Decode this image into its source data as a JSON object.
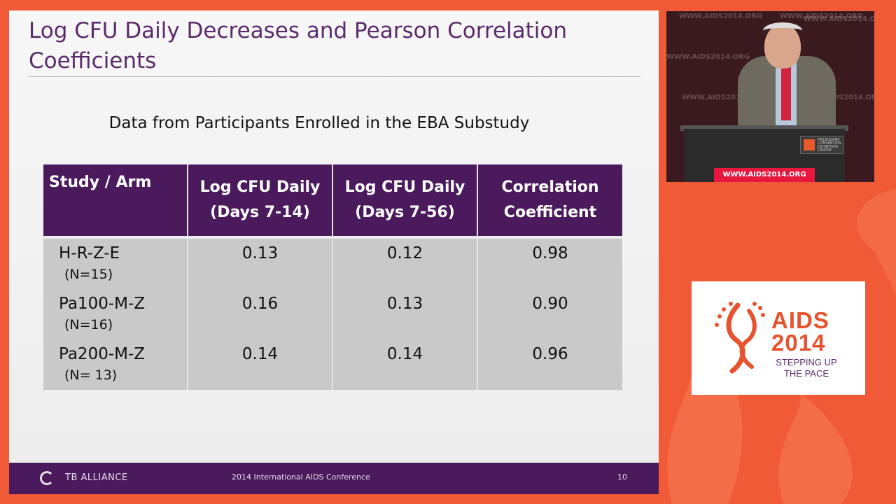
{
  "slide": {
    "title": "Log CFU Daily Decreases and Pearson Correlation Coefficients",
    "subtitle": "Data from Participants Enrolled in the EBA Substudy",
    "table": {
      "headers": [
        "Study / Arm",
        "Log CFU Daily (Days 7-14)",
        "Log CFU Daily (Days 7-56)",
        "Correlation Coefficient"
      ],
      "header_lines": [
        [
          "Study / Arm"
        ],
        [
          "Log CFU Daily",
          "(Days 7-14)"
        ],
        [
          "Log CFU Daily",
          "(Days 7-56)"
        ],
        [
          "Correlation",
          "Coefficient"
        ]
      ],
      "rows": [
        {
          "arm": "H-R-Z-E",
          "n": "(N=15)",
          "days_7_14": "0.13",
          "days_7_56": "0.12",
          "correlation": "0.98"
        },
        {
          "arm": "Pa100-M-Z",
          "n": "(N=16)",
          "days_7_14": "0.16",
          "days_7_56": "0.13",
          "correlation": "0.90"
        },
        {
          "arm": "Pa200-M-Z",
          "n": "(N= 13)",
          "days_7_14": "0.14",
          "days_7_56": "0.14",
          "correlation": "0.96"
        }
      ]
    },
    "footer": {
      "org": "TB ALLIANCE",
      "conference": "2014 International AIDS Conference",
      "page_number": "10"
    }
  },
  "video": {
    "watermark": "WWW.AIDS2014.ORG",
    "podium_sign": "WWW.AIDS2014.ORG",
    "plaque_lines": [
      "MELBOURNE",
      "CONVENTION",
      "EXHIBITION",
      "CENTRE"
    ]
  },
  "event_logo": {
    "line1": "AIDS",
    "line2": "2014",
    "tagline_1": "STEPPING UP",
    "tagline_2": "THE PACE"
  },
  "colors": {
    "background_orange": "#f05a36",
    "slide_purple": "#4a1a5c",
    "table_cell_gray": "#c9c9c9",
    "logo_orange": "#e8532f"
  }
}
